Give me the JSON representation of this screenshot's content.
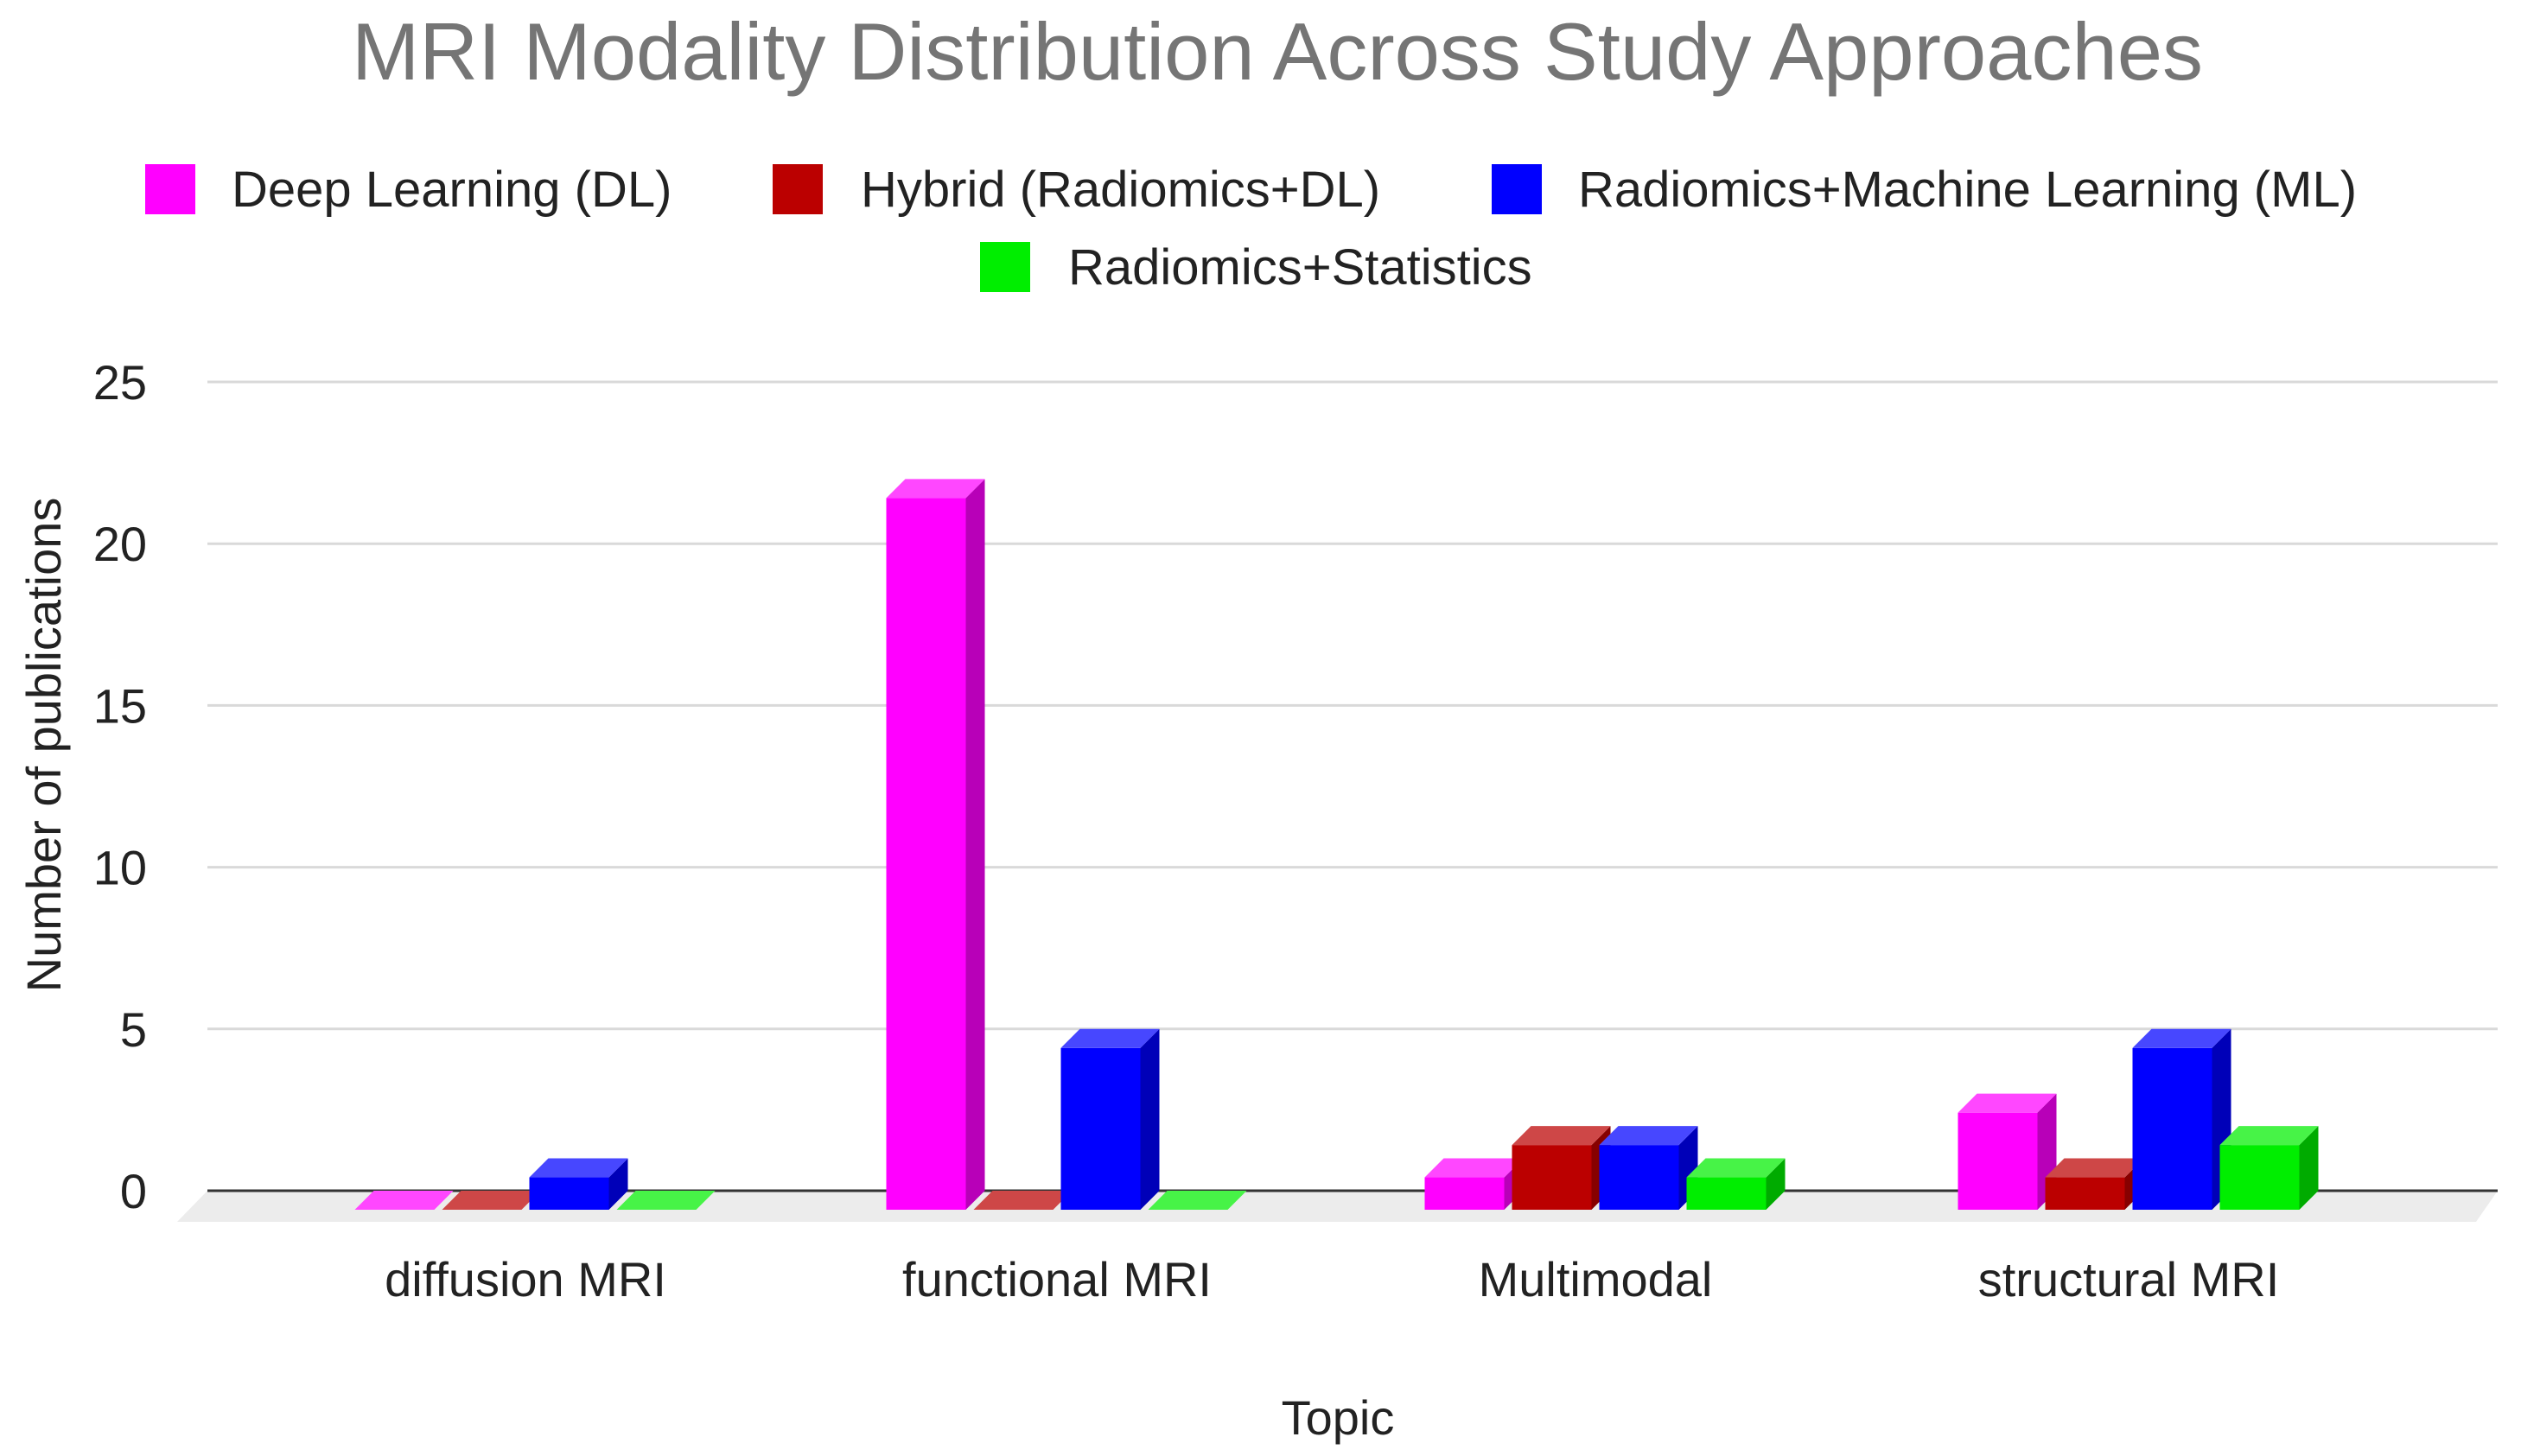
{
  "chart_data": {
    "type": "bar",
    "title": "MRI Modality Distribution Across Study Approaches",
    "xlabel": "Topic",
    "ylabel": "Number of publications",
    "ylim": [
      0,
      25
    ],
    "yticks": [
      "0",
      "5",
      "10",
      "15",
      "20",
      "25"
    ],
    "grid": true,
    "legend_position": "top",
    "categories": [
      "diffusion MRI",
      "functional MRI",
      "Multimodal",
      "structural MRI"
    ],
    "series": [
      {
        "name": "Deep Learning (DL)",
        "color": "#ff00ff",
        "values": [
          0,
          22,
          1,
          3
        ]
      },
      {
        "name": "Hybrid (Radiomics+DL)",
        "color": "#bb0000",
        "values": [
          0,
          0,
          2,
          1
        ]
      },
      {
        "name": "Radiomics+Machine Learning (ML)",
        "color": "#0000ff",
        "values": [
          1,
          5,
          2,
          5
        ]
      },
      {
        "name": "Radiomics+Statistics",
        "color": "#00ee00",
        "values": [
          0,
          0,
          1,
          2
        ]
      }
    ]
  }
}
